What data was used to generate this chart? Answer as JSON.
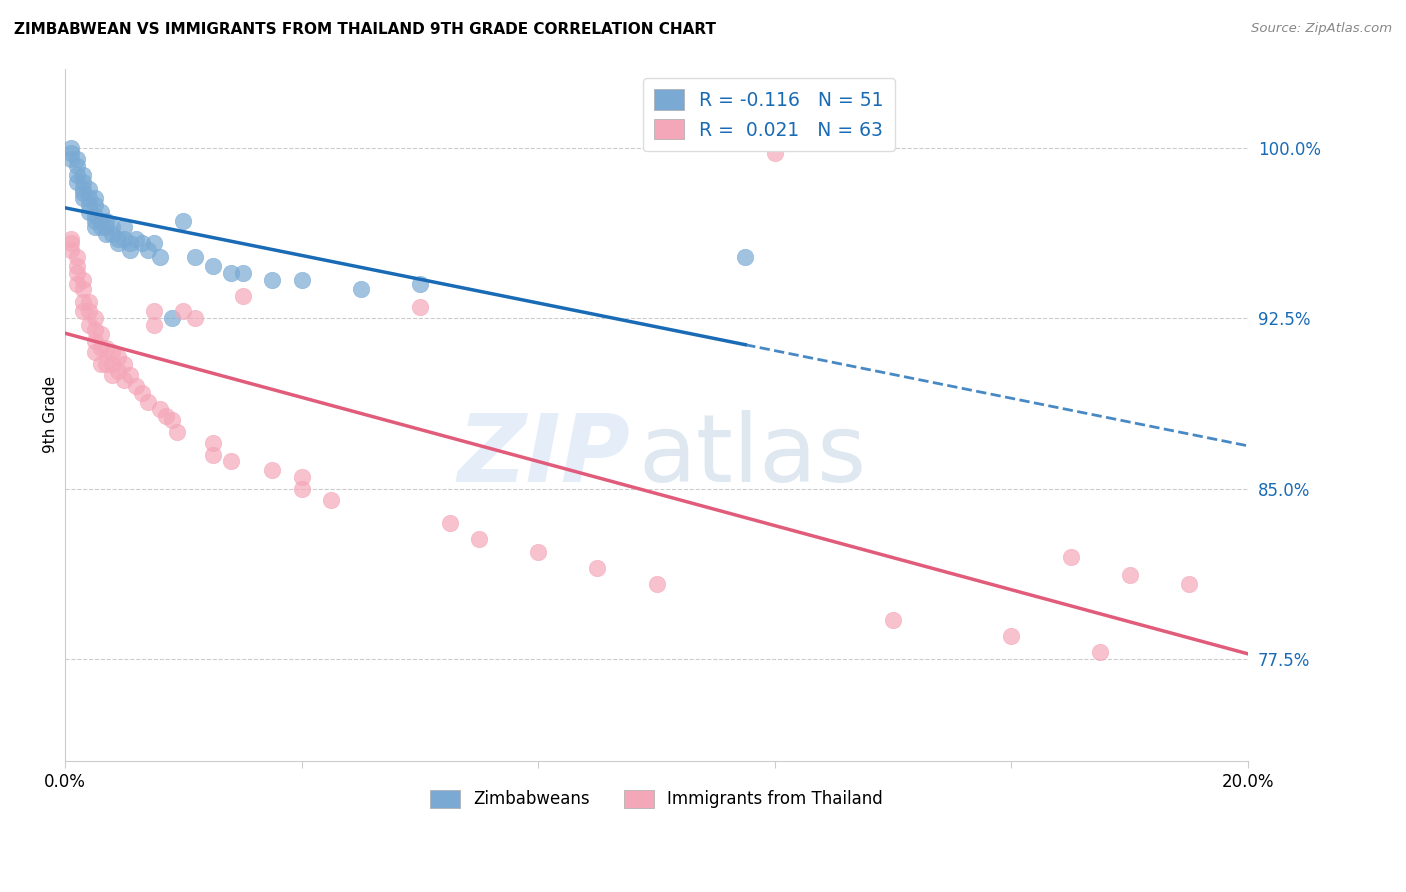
{
  "title": "ZIMBABWEAN VS IMMIGRANTS FROM THAILAND 9TH GRADE CORRELATION CHART",
  "source": "Source: ZipAtlas.com",
  "ylabel": "9th Grade",
  "y_tick_labels": [
    "77.5%",
    "85.0%",
    "92.5%",
    "100.0%"
  ],
  "y_tick_values": [
    0.775,
    0.85,
    0.925,
    1.0
  ],
  "legend_label_blue": "Zimbabweans",
  "legend_label_pink": "Immigrants from Thailand",
  "R_blue": -0.116,
  "N_blue": 51,
  "R_pink": 0.021,
  "N_pink": 63,
  "blue_color": "#7aaad4",
  "pink_color": "#f4a7b9",
  "trend_blue": "#1a6bb5",
  "trend_pink": "#e05c7a",
  "blue_scatter_x": [
    0.001,
    0.001,
    0.001,
    0.002,
    0.002,
    0.002,
    0.002,
    0.003,
    0.003,
    0.003,
    0.003,
    0.003,
    0.004,
    0.004,
    0.004,
    0.004,
    0.005,
    0.005,
    0.005,
    0.005,
    0.005,
    0.006,
    0.006,
    0.006,
    0.007,
    0.007,
    0.007,
    0.008,
    0.008,
    0.009,
    0.009,
    0.01,
    0.01,
    0.011,
    0.011,
    0.012,
    0.013,
    0.014,
    0.015,
    0.016,
    0.018,
    0.02,
    0.022,
    0.025,
    0.028,
    0.03,
    0.035,
    0.04,
    0.05,
    0.06,
    0.115
  ],
  "blue_scatter_y": [
    1.0,
    0.998,
    0.995,
    0.995,
    0.992,
    0.988,
    0.985,
    0.988,
    0.985,
    0.982,
    0.98,
    0.978,
    0.982,
    0.978,
    0.975,
    0.972,
    0.978,
    0.975,
    0.97,
    0.968,
    0.965,
    0.972,
    0.968,
    0.965,
    0.968,
    0.965,
    0.962,
    0.965,
    0.962,
    0.96,
    0.958,
    0.965,
    0.96,
    0.958,
    0.955,
    0.96,
    0.958,
    0.955,
    0.958,
    0.952,
    0.925,
    0.968,
    0.952,
    0.948,
    0.945,
    0.945,
    0.942,
    0.942,
    0.938,
    0.94,
    0.952
  ],
  "pink_scatter_x": [
    0.001,
    0.001,
    0.001,
    0.002,
    0.002,
    0.002,
    0.002,
    0.003,
    0.003,
    0.003,
    0.003,
    0.004,
    0.004,
    0.004,
    0.005,
    0.005,
    0.005,
    0.005,
    0.006,
    0.006,
    0.006,
    0.007,
    0.007,
    0.008,
    0.008,
    0.008,
    0.009,
    0.009,
    0.01,
    0.01,
    0.011,
    0.012,
    0.013,
    0.014,
    0.015,
    0.015,
    0.016,
    0.017,
    0.018,
    0.019,
    0.02,
    0.022,
    0.025,
    0.025,
    0.028,
    0.03,
    0.035,
    0.04,
    0.04,
    0.045,
    0.06,
    0.065,
    0.07,
    0.08,
    0.09,
    0.1,
    0.12,
    0.14,
    0.16,
    0.17,
    0.175,
    0.18,
    0.19
  ],
  "pink_scatter_y": [
    0.96,
    0.958,
    0.955,
    0.952,
    0.948,
    0.945,
    0.94,
    0.942,
    0.938,
    0.932,
    0.928,
    0.932,
    0.928,
    0.922,
    0.925,
    0.92,
    0.915,
    0.91,
    0.918,
    0.912,
    0.905,
    0.912,
    0.905,
    0.91,
    0.905,
    0.9,
    0.908,
    0.902,
    0.905,
    0.898,
    0.9,
    0.895,
    0.892,
    0.888,
    0.928,
    0.922,
    0.885,
    0.882,
    0.88,
    0.875,
    0.928,
    0.925,
    0.87,
    0.865,
    0.862,
    0.935,
    0.858,
    0.855,
    0.85,
    0.845,
    0.93,
    0.835,
    0.828,
    0.822,
    0.815,
    0.808,
    0.998,
    0.792,
    0.785,
    0.82,
    0.778,
    0.812,
    0.808
  ],
  "xlim": [
    0.0,
    0.2
  ],
  "ylim": [
    0.73,
    1.035
  ]
}
